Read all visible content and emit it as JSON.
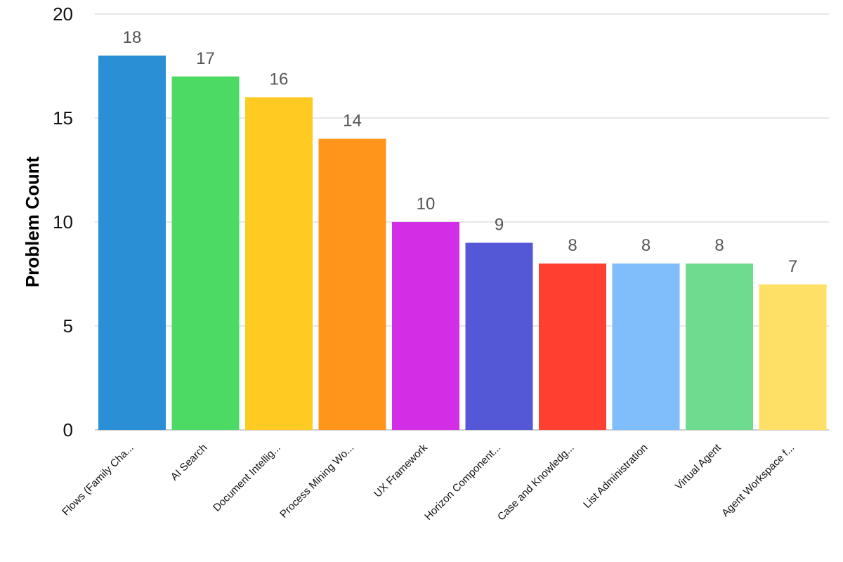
{
  "chart_data": {
    "type": "bar",
    "title": "",
    "xlabel": "",
    "ylabel": "Problem Count",
    "ylim": [
      0,
      20
    ],
    "yticks": [
      0,
      5,
      10,
      15,
      20
    ],
    "grid": true,
    "legend": "none",
    "categories": [
      "Flows (Family Cha...",
      "AI Search",
      "Document Intellig...",
      "Process Mining Wo...",
      "UX Framework",
      "Horizon Component...",
      "Case and Knowledg...",
      "List Administration",
      "Virtual Agent",
      "Agent Workspace f..."
    ],
    "values": [
      18,
      17,
      16,
      14,
      10,
      9,
      8,
      8,
      8,
      7
    ],
    "colors": [
      "#2a8fd4",
      "#4cd964",
      "#ffca21",
      "#ff951a",
      "#d12ee6",
      "#5458d6",
      "#ff3f30",
      "#7fbdfb",
      "#6fdb8e",
      "#ffe066"
    ],
    "data_labels": true
  }
}
